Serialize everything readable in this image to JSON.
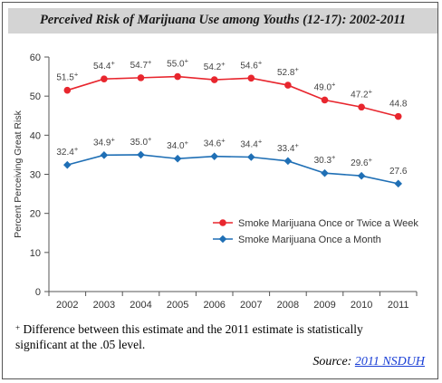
{
  "chart_data": {
    "type": "line",
    "title": "Perceived Risk of Marijuana Use among Youths (12-17):  2002-2011",
    "ylabel": "Percent Perceiving Great Risk",
    "xlabel": "",
    "ylim": [
      0,
      60
    ],
    "yticks": [
      0,
      10,
      20,
      30,
      40,
      50,
      60
    ],
    "categories": [
      "2002",
      "2003",
      "2004",
      "2005",
      "2006",
      "2007",
      "2008",
      "2009",
      "2010",
      "2011"
    ],
    "legend_position": "right",
    "grid": false,
    "series": [
      {
        "name": "Smoke Marijuana Once or Twice a Week",
        "color": "#e8262e",
        "marker": "circle",
        "values": [
          51.5,
          54.4,
          54.7,
          55.0,
          54.2,
          54.6,
          52.8,
          49.0,
          47.2,
          44.8
        ],
        "labels": [
          "51.5",
          "54.4",
          "54.7",
          "55.0",
          "54.2",
          "54.6",
          "52.8",
          "49.0",
          "47.2",
          "44.8"
        ],
        "significant": [
          true,
          true,
          true,
          true,
          true,
          true,
          true,
          true,
          true,
          false
        ]
      },
      {
        "name": "Smoke Marijuana Once a Month",
        "color": "#1f6fb5",
        "marker": "diamond",
        "values": [
          32.4,
          34.9,
          35.0,
          34.0,
          34.6,
          34.4,
          33.4,
          30.3,
          29.6,
          27.6
        ],
        "labels": [
          "32.4",
          "34.9",
          "35.0",
          "34.0",
          "34.6",
          "34.4",
          "33.4",
          "30.3",
          "29.6",
          "27.6"
        ],
        "significant": [
          true,
          true,
          true,
          true,
          true,
          true,
          true,
          true,
          true,
          false
        ]
      }
    ]
  },
  "title_display": "Perceived Risk of Marijuana Use among Youths (12-17):  2002-2011",
  "footnote": {
    "symbol": "+",
    "text": " Difference between this estimate and the 2011 estimate is statistically significant at the .05 level."
  },
  "source": {
    "prefix": "Source: ",
    "link_text": "2011 NSDUH"
  }
}
